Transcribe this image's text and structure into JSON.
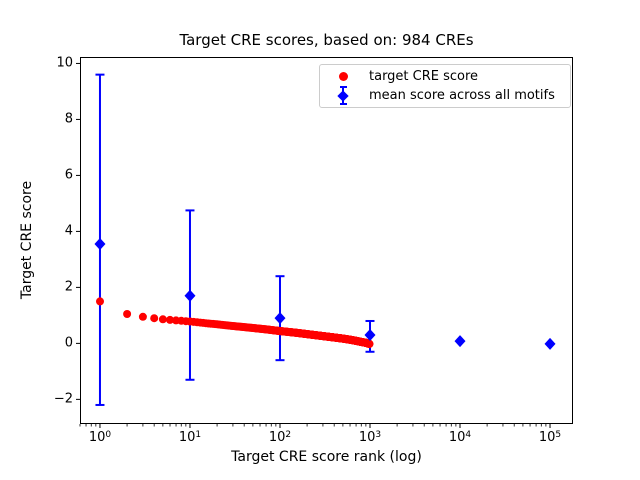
{
  "figure": {
    "title": "Target CRE scores, based on: 984 CREs",
    "xlabel": "Target CRE score rank (log)",
    "ylabel": "Target CRE score"
  },
  "legend": {
    "items": [
      {
        "label": "target CRE score",
        "marker": "circle",
        "color": "#ff0000"
      },
      {
        "label": "mean score across all motifs",
        "marker": "diamond-errorbar",
        "color": "#0000ff"
      }
    ]
  },
  "chart_data": {
    "type": "scatter",
    "title": "Target CRE scores, based on: 984 CREs",
    "xlabel": "Target CRE score rank (log)",
    "ylabel": "Target CRE score",
    "x_scale": "log",
    "grid": false,
    "legend_position": "upper right",
    "xlim": [
      0.6,
      180000
    ],
    "ylim": [
      -2.88,
      10.23
    ],
    "x_ticks": [
      {
        "value": 1,
        "base": "10",
        "exp": "0"
      },
      {
        "value": 10,
        "base": "10",
        "exp": "1"
      },
      {
        "value": 100,
        "base": "10",
        "exp": "2"
      },
      {
        "value": 1000,
        "base": "10",
        "exp": "3"
      },
      {
        "value": 10000,
        "base": "10",
        "exp": "4"
      },
      {
        "value": 100000,
        "base": "10",
        "exp": "5"
      }
    ],
    "y_ticks": [
      {
        "value": -2,
        "label": "−2"
      },
      {
        "value": 0,
        "label": "0"
      },
      {
        "value": 2,
        "label": "2"
      },
      {
        "value": 4,
        "label": "4"
      },
      {
        "value": 6,
        "label": "6"
      },
      {
        "value": 8,
        "label": "8"
      },
      {
        "value": 10,
        "label": "10"
      }
    ],
    "series": [
      {
        "name": "target CRE score",
        "marker": "circle",
        "color": "#ff0000",
        "n_points": 984,
        "anchors": [
          [
            1,
            1.5
          ],
          [
            2,
            1.05
          ],
          [
            3,
            0.95
          ],
          [
            4,
            0.9
          ],
          [
            5,
            0.86
          ],
          [
            7,
            0.82
          ],
          [
            10,
            0.78
          ],
          [
            15,
            0.72
          ],
          [
            20,
            0.68
          ],
          [
            30,
            0.62
          ],
          [
            50,
            0.55
          ],
          [
            70,
            0.5
          ],
          [
            100,
            0.44
          ],
          [
            150,
            0.38
          ],
          [
            200,
            0.33
          ],
          [
            300,
            0.26
          ],
          [
            400,
            0.21
          ],
          [
            500,
            0.17
          ],
          [
            600,
            0.13
          ],
          [
            700,
            0.09
          ],
          [
            800,
            0.05
          ],
          [
            900,
            0.02
          ],
          [
            984,
            -0.02
          ]
        ]
      },
      {
        "name": "mean score across all motifs",
        "marker": "diamond",
        "color": "#0000ff",
        "points": [
          {
            "x": 1,
            "y": 3.55,
            "lo": -2.2,
            "hi": 9.6
          },
          {
            "x": 10,
            "y": 1.7,
            "lo": -1.3,
            "hi": 4.75
          },
          {
            "x": 100,
            "y": 0.9,
            "lo": -0.6,
            "hi": 2.4
          },
          {
            "x": 1000,
            "y": 0.3,
            "lo": -0.3,
            "hi": 0.8
          },
          {
            "x": 10000,
            "y": 0.08,
            "lo": 0.08,
            "hi": 0.08
          },
          {
            "x": 100000,
            "y": -0.02,
            "lo": -0.02,
            "hi": -0.02
          }
        ]
      }
    ]
  }
}
